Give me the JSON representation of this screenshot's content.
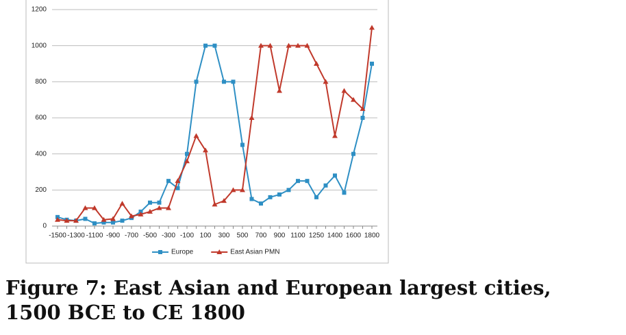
{
  "chart_data": {
    "type": "line",
    "title": "Figure 7: East Asian and European largest cities, 1500 BCE to CE 1800",
    "categories": [
      "-1500",
      null,
      "-1300",
      null,
      "-1100",
      null,
      "-900",
      null,
      "-700",
      null,
      "-500",
      null,
      "-300",
      null,
      "-100",
      null,
      "100",
      null,
      "300",
      null,
      "500",
      null,
      "700",
      null,
      "900",
      null,
      "1100",
      null,
      "1250",
      null,
      "1400",
      null,
      "1600",
      null,
      "1800"
    ],
    "series": [
      {
        "name": "Europe",
        "color": "#2e8fc4",
        "marker": "square",
        "values": [
          50,
          35,
          30,
          40,
          15,
          20,
          20,
          30,
          45,
          80,
          130,
          130,
          250,
          210,
          400,
          800,
          1000,
          1000,
          800,
          800,
          450,
          150,
          125,
          160,
          175,
          200,
          250,
          250,
          160,
          225,
          280,
          185,
          400,
          600,
          900
        ]
      },
      {
        "name": "East Asian PMN",
        "color": "#c0392b",
        "marker": "triangle",
        "values": [
          35,
          30,
          30,
          100,
          100,
          35,
          40,
          125,
          55,
          65,
          80,
          100,
          100,
          250,
          360,
          500,
          420,
          120,
          140,
          200,
          200,
          600,
          1000,
          1000,
          750,
          1000,
          1000,
          1000,
          900,
          800,
          500,
          750,
          700,
          650,
          1100
        ]
      }
    ],
    "ylim": [
      0,
      1200
    ],
    "yticks": [
      0,
      200,
      400,
      600,
      800,
      1000,
      1200
    ],
    "grid": true
  }
}
